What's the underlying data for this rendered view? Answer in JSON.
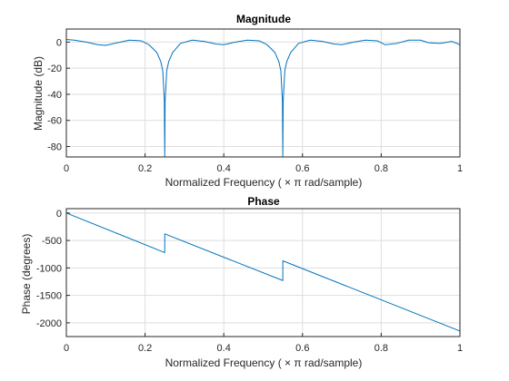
{
  "figure": {
    "background": "#ffffff",
    "axis_color": "#262626",
    "grid_color": "#dedede",
    "line_color": "#0072bd"
  },
  "chart_data": [
    {
      "type": "line",
      "title": "Magnitude",
      "xlabel": "Normalized  Frequency    ( × π  rad/sample)",
      "ylabel": "Magnitude (dB)",
      "xlim": [
        0,
        1
      ],
      "ylim": [
        -88,
        10
      ],
      "grid": true,
      "xticks": [
        0,
        0.2,
        0.4,
        0.6,
        0.8,
        1
      ],
      "xticklabels": [
        "0",
        "0.2",
        "0.4",
        "0.6",
        "0.8",
        "1"
      ],
      "yticks": [
        0,
        -20,
        -40,
        -60,
        -80
      ],
      "yticklabels": [
        "0",
        "-20",
        "-40",
        "-60",
        "-80"
      ],
      "series": [
        {
          "x": [
            0,
            0.02,
            0.05,
            0.08,
            0.1,
            0.13,
            0.16,
            0.19,
            0.21,
            0.23,
            0.24,
            0.245,
            0.249,
            0.25,
            0.251,
            0.255,
            0.26,
            0.27,
            0.29,
            0.32,
            0.35,
            0.38,
            0.4,
            0.43,
            0.46,
            0.49,
            0.51,
            0.53,
            0.54,
            0.545,
            0.549,
            0.55,
            0.551,
            0.555,
            0.56,
            0.57,
            0.59,
            0.62,
            0.65,
            0.68,
            0.7,
            0.73,
            0.76,
            0.79,
            0.81,
            0.84,
            0.87,
            0.9,
            0.92,
            0.95,
            0.98,
            1.0
          ],
          "y": [
            2,
            1.5,
            0,
            -2,
            -2.5,
            -0.5,
            1.5,
            1,
            -2,
            -8,
            -15,
            -22,
            -45,
            -88,
            -45,
            -22,
            -15,
            -8,
            -1,
            1.5,
            0.5,
            -1.5,
            -2,
            0,
            1.5,
            1,
            -2,
            -8,
            -15,
            -22,
            -45,
            -88,
            -45,
            -22,
            -15,
            -8,
            -1,
            1.5,
            0.5,
            -1.5,
            -2,
            0,
            1.5,
            1,
            -2,
            -1,
            1.5,
            1.5,
            -0.5,
            -1,
            0.5,
            -2
          ]
        }
      ]
    },
    {
      "type": "line",
      "title": "Phase",
      "xlabel": "Normalized  Frequency    ( × π  rad/sample)",
      "ylabel": "Phase (degrees)",
      "xlim": [
        0,
        1
      ],
      "ylim": [
        -2250,
        80
      ],
      "grid": true,
      "xticks": [
        0,
        0.2,
        0.4,
        0.6,
        0.8,
        1
      ],
      "xticklabels": [
        "0",
        "0.2",
        "0.4",
        "0.6",
        "0.8",
        "1"
      ],
      "yticks": [
        0,
        -500,
        -1000,
        -1500,
        -2000
      ],
      "yticklabels": [
        "0",
        "-500",
        "-1000",
        "-1500",
        "-2000"
      ],
      "series": [
        {
          "x": [
            0,
            0.25,
            0.25,
            0.55,
            0.55,
            1.0
          ],
          "y": [
            0,
            -720,
            -380,
            -1230,
            -870,
            -2150
          ]
        }
      ]
    }
  ]
}
